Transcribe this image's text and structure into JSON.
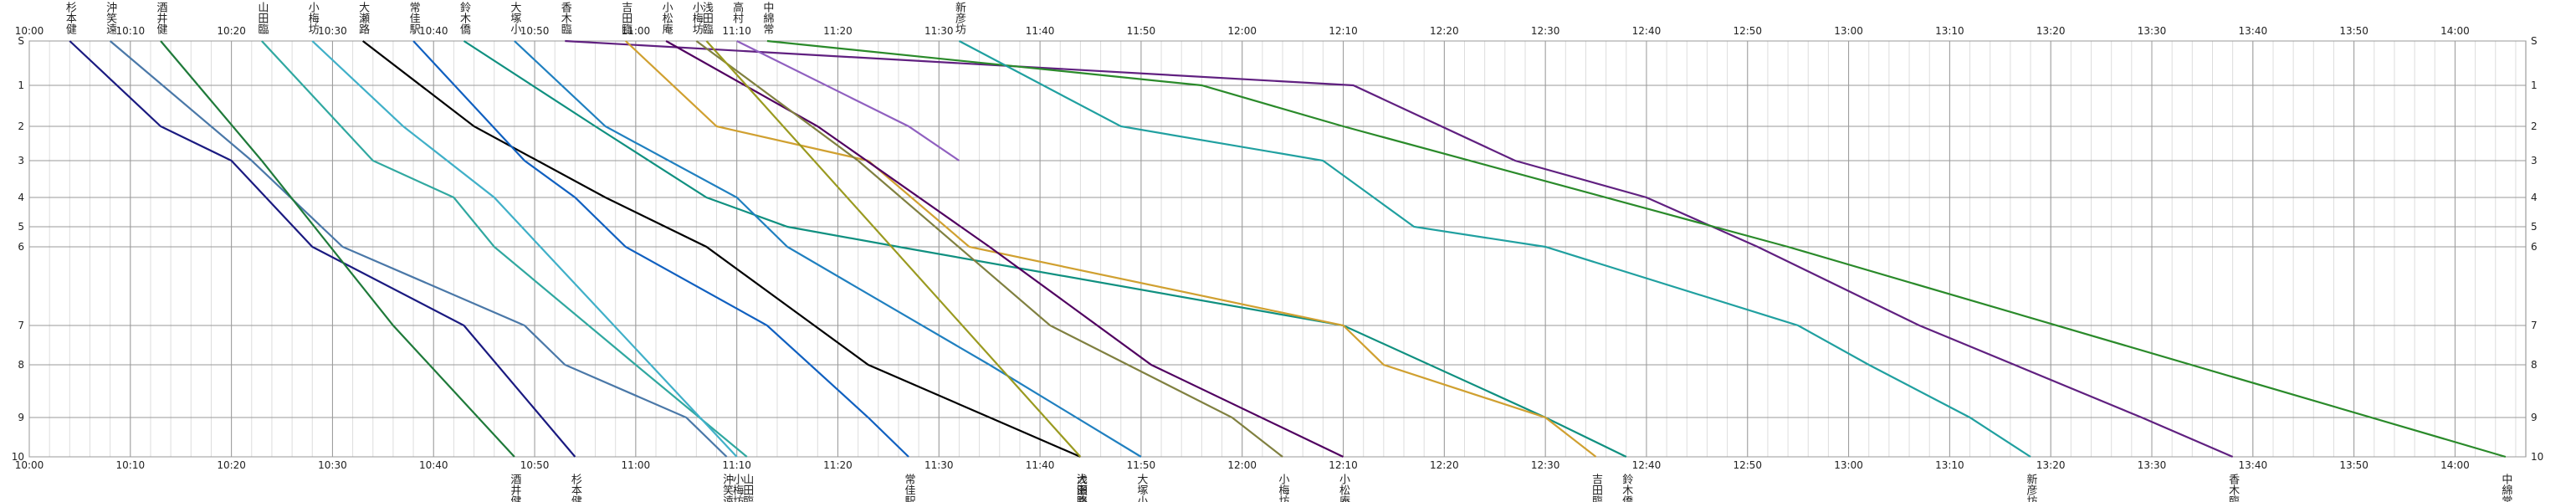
{
  "chart_data": {
    "type": "line",
    "xlim": [
      "10:00",
      "14:07"
    ],
    "xticks": [
      "10:00",
      "10:10",
      "10:20",
      "10:30",
      "10:40",
      "10:50",
      "11:00",
      "11:10",
      "11:20",
      "11:30",
      "11:40",
      "11:50",
      "12:00",
      "12:10",
      "12:20",
      "12:30",
      "12:40",
      "12:50",
      "13:00",
      "13:10",
      "13:20",
      "13:30",
      "13:40",
      "13:50",
      "14:00"
    ],
    "ylim": [
      0,
      10
    ],
    "yticks": [
      {
        "value": 0,
        "label": "S"
      },
      1,
      2,
      3,
      4,
      5,
      6,
      7,
      8,
      9,
      10
    ],
    "grid": true,
    "series": [
      {
        "name": "杉本健",
        "color": "#1a1a80",
        "x": [
          "10:04",
          "10:13",
          "10:20",
          "10:28",
          "10:43",
          "10:54"
        ],
        "values": [
          0,
          2,
          3,
          6,
          7,
          10
        ]
      },
      {
        "name": "沖笑遠",
        "color": "#4a78a8",
        "x": [
          "10:08",
          "10:22",
          "10:31",
          "10:49",
          "10:53",
          "11:05",
          "11:09"
        ],
        "values": [
          0,
          3,
          6,
          7,
          8,
          9,
          10
        ]
      },
      {
        "name": "酒井健",
        "color": "#1f7a3a",
        "x": [
          "10:13",
          "10:23",
          "10:36",
          "10:48"
        ],
        "values": [
          0,
          3,
          7,
          10
        ]
      },
      {
        "name": "山田臨",
        "color": "#30a8a0",
        "x": [
          "10:23",
          "10:34",
          "10:42",
          "10:46",
          "11:00",
          "11:11"
        ],
        "values": [
          0,
          3,
          4,
          6,
          8,
          10
        ]
      },
      {
        "name": "小梅坊",
        "color": "#40b0c8",
        "x": [
          "10:28",
          "10:37",
          "10:46",
          "11:10"
        ],
        "values": [
          0,
          2,
          4,
          10
        ]
      },
      {
        "name": "大瀬路",
        "color": "#000000",
        "x": [
          "10:33",
          "10:44",
          "10:57",
          "11:07",
          "11:23",
          "11:44"
        ],
        "values": [
          0,
          2,
          4,
          6,
          8,
          10
        ]
      },
      {
        "name": "常佳駅",
        "color": "#1060c0",
        "x": [
          "10:38",
          "10:49",
          "10:54",
          "10:59",
          "11:13",
          "11:23",
          "11:27"
        ],
        "values": [
          0,
          3,
          4,
          6,
          7,
          9,
          10
        ]
      },
      {
        "name": "鈴木僑",
        "color": "#109080",
        "x": [
          "10:43",
          "10:56",
          "11:07",
          "11:15",
          "11:26",
          "12:10",
          "12:30",
          "12:38"
        ],
        "values": [
          0,
          2,
          4,
          5,
          6,
          7,
          9,
          10
        ]
      },
      {
        "name": "大塚小",
        "color": "#2080c0",
        "x": [
          "10:48",
          "10:57",
          "11:10",
          "11:15",
          "11:35",
          "11:50"
        ],
        "values": [
          0,
          2,
          4,
          6,
          8,
          10
        ]
      },
      {
        "name": "香木臨",
        "color": "#602080",
        "x": [
          "10:53",
          "12:11",
          "12:27",
          "12:40",
          "12:51",
          "13:07",
          "13:29",
          "13:38"
        ],
        "values": [
          0,
          1,
          3,
          4,
          6,
          7,
          9,
          10
        ]
      },
      {
        "name": "吉田臨",
        "color": "#d0a030",
        "x": [
          "10:59",
          "11:08",
          "11:23",
          "11:33",
          "12:10",
          "12:14",
          "12:30",
          "12:35"
        ],
        "values": [
          0,
          2,
          3,
          6,
          7,
          8,
          9,
          10
        ]
      },
      {
        "name": "小松庵",
        "color": "#500060",
        "x": [
          "11:03",
          "11:18",
          "11:35",
          "11:51",
          "12:10"
        ],
        "values": [
          0,
          2,
          6,
          8,
          10
        ]
      },
      {
        "name": "小梅坊",
        "color": "#808040",
        "x": [
          "11:06",
          "11:22",
          "11:41",
          "11:59",
          "12:04"
        ],
        "values": [
          0,
          3,
          7,
          9,
          10
        ]
      },
      {
        "name": "浅田臨",
        "color": "#9a9a20",
        "x": [
          "11:07",
          "11:44"
        ],
        "values": [
          0,
          10
        ]
      },
      {
        "name": "高村",
        "color": "#9060c0",
        "x": [
          "11:10",
          "11:27",
          "11:32"
        ],
        "values": [
          0,
          2,
          3
        ]
      },
      {
        "name": "中綿常",
        "color": "#2a8a2a",
        "x": [
          "11:13",
          "11:56",
          "12:10",
          "12:54",
          "14:05"
        ],
        "values": [
          0,
          1,
          2,
          6,
          10
        ]
      },
      {
        "name": "新彦坊",
        "color": "#20a0a0",
        "x": [
          "11:32",
          "11:48",
          "12:08",
          "12:17",
          "12:30",
          "12:55",
          "13:02",
          "13:12",
          "13:18"
        ],
        "values": [
          0,
          2,
          3,
          5,
          6,
          7,
          8,
          9,
          10
        ]
      }
    ]
  }
}
